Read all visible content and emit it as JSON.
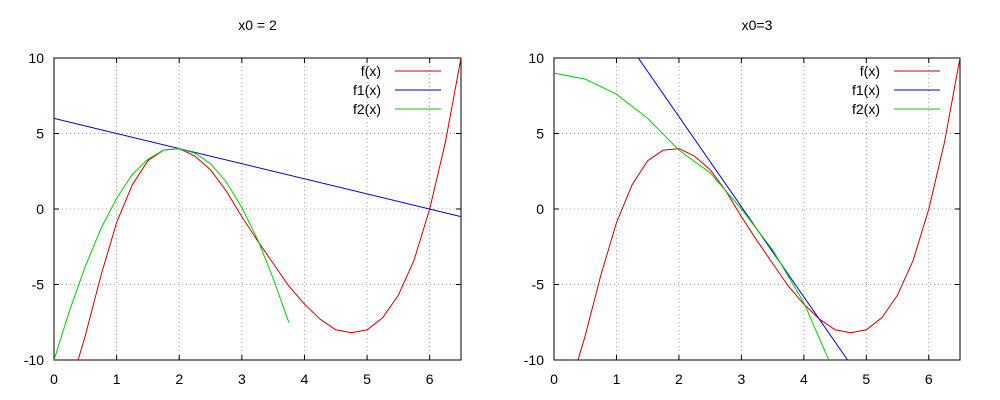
{
  "chart_data": [
    {
      "type": "line",
      "title": "x0 = 2",
      "xlim": [
        0,
        6.5
      ],
      "ylim": [
        -10,
        10
      ],
      "xticks": [
        0,
        1,
        2,
        3,
        4,
        5,
        6
      ],
      "yticks": [
        -10,
        -5,
        0,
        5,
        10
      ],
      "grid": true,
      "legend_position": "top-right",
      "series": [
        {
          "name": "f(x)",
          "color": "#cc0000",
          "x": [
            0.37,
            0.5,
            0.75,
            1,
            1.25,
            1.5,
            1.75,
            2,
            2.25,
            2.5,
            2.75,
            3,
            3.25,
            3.5,
            3.75,
            4,
            4.25,
            4.5,
            4.75,
            5,
            5.25,
            5.5,
            5.75,
            6,
            6.25,
            6.5
          ],
          "y": [
            -10.2,
            -8.4,
            -4.4,
            -0.9,
            1.6,
            3.2,
            3.9,
            4,
            3.5,
            2.6,
            1.2,
            -0.5,
            -2.1,
            -3.6,
            -5.1,
            -6.3,
            -7.3,
            -8,
            -8.2,
            -8,
            -7.2,
            -5.7,
            -3.4,
            0,
            4.4,
            10
          ]
        },
        {
          "name": "f1(x)",
          "color": "#0000cc",
          "x": [
            0,
            6.5
          ],
          "y": [
            6.0,
            -0.5
          ]
        },
        {
          "name": "f2(x)",
          "color": "#00cc00",
          "x": [
            0,
            0.25,
            0.5,
            0.75,
            1,
            1.25,
            1.5,
            1.75,
            2,
            2.25,
            2.5,
            2.75,
            3,
            3.25,
            3.5,
            3.75
          ],
          "y": [
            -10,
            -6.7,
            -3.8,
            -1.3,
            0.7,
            2.3,
            3.3,
            3.9,
            4,
            3.7,
            3,
            1.8,
            0.1,
            -2,
            -4.6,
            -7.5
          ]
        }
      ]
    },
    {
      "type": "line",
      "title": "x0=3",
      "xlim": [
        0,
        6.5
      ],
      "ylim": [
        -10,
        10
      ],
      "xticks": [
        0,
        1,
        2,
        3,
        4,
        5,
        6
      ],
      "yticks": [
        -10,
        -5,
        0,
        5,
        10
      ],
      "grid": true,
      "legend_position": "top-right",
      "series": [
        {
          "name": "f(x)",
          "color": "#cc0000",
          "x": [
            0.37,
            0.5,
            0.75,
            1,
            1.25,
            1.5,
            1.75,
            2,
            2.25,
            2.5,
            2.75,
            3,
            3.25,
            3.5,
            3.75,
            4,
            4.25,
            4.5,
            4.75,
            5,
            5.25,
            5.5,
            5.75,
            6,
            6.25,
            6.5
          ],
          "y": [
            -10.2,
            -8.4,
            -4.4,
            -0.9,
            1.6,
            3.2,
            3.9,
            4,
            3.5,
            2.6,
            1.2,
            -0.5,
            -2.1,
            -3.6,
            -5.1,
            -6.3,
            -7.3,
            -8,
            -8.2,
            -8,
            -7.2,
            -5.7,
            -3.4,
            0,
            4.4,
            10
          ]
        },
        {
          "name": "f1(x)",
          "color": "#0000cc",
          "x": [
            1.35,
            4.7
          ],
          "y": [
            10,
            -10
          ]
        },
        {
          "name": "f2(x)",
          "color": "#00cc00",
          "x": [
            0,
            0.5,
            1,
            1.5,
            2,
            2.5,
            3,
            3.5,
            4,
            4.4
          ],
          "y": [
            9,
            8.6,
            7.6,
            6,
            3.9,
            2.4,
            0,
            -2.7,
            -6.2,
            -10
          ]
        }
      ]
    }
  ]
}
